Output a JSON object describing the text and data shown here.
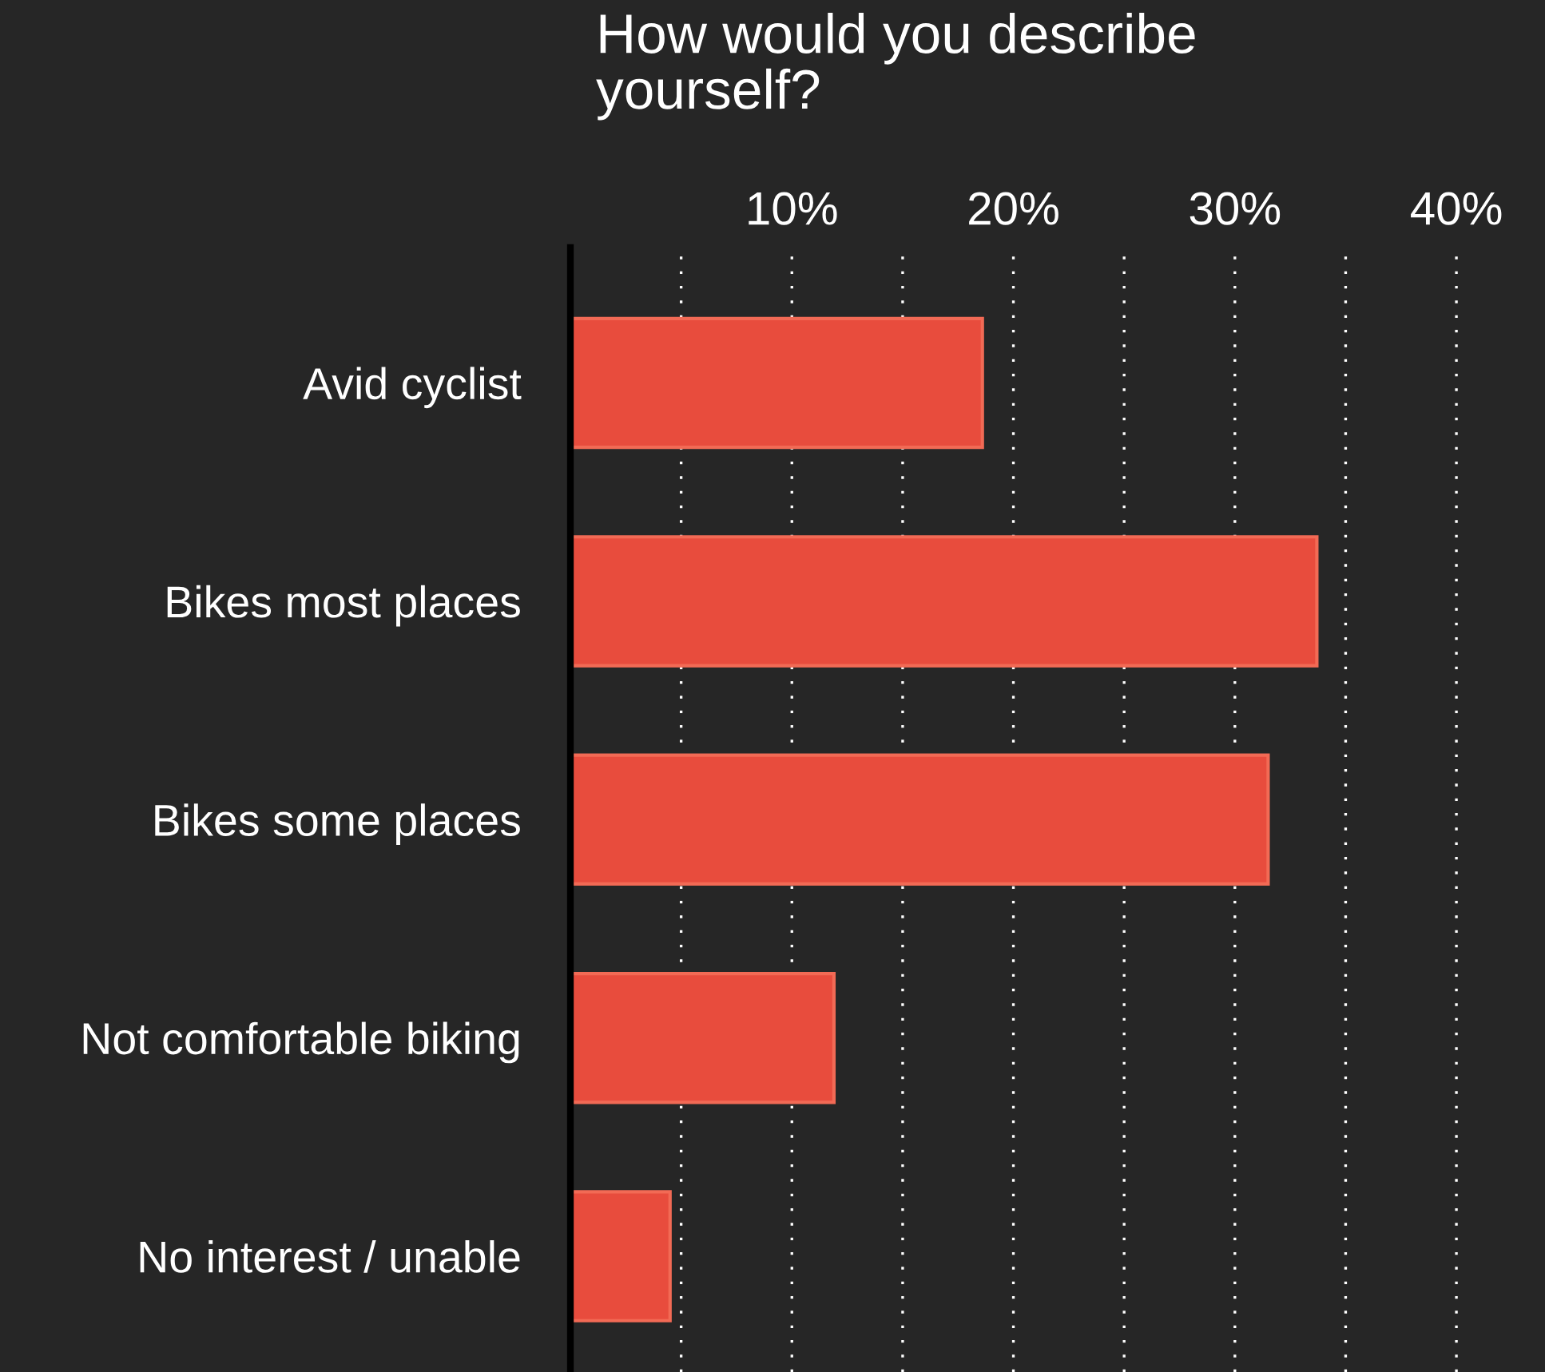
{
  "chart_data": {
    "type": "bar",
    "orientation": "horizontal",
    "title": "How would you describe\nyourself?",
    "categories": [
      "Avid cyclist",
      "Bikes most places",
      "Bikes some places",
      "Not comfortable biking",
      "No interest / unable"
    ],
    "values": [
      18.6,
      33.7,
      31.5,
      11.9,
      4.5
    ],
    "color": "#e84c3d",
    "xlim": [
      0,
      44
    ],
    "xticks": [
      {
        "value": 5,
        "label": null
      },
      {
        "value": 10,
        "label": "10%"
      },
      {
        "value": 15,
        "label": null
      },
      {
        "value": 20,
        "label": "20%"
      },
      {
        "value": 25,
        "label": null
      },
      {
        "value": 30,
        "label": "30%"
      },
      {
        "value": 35,
        "label": null
      },
      {
        "value": 40,
        "label": "40%"
      }
    ],
    "grid": "x",
    "legend": false
  }
}
